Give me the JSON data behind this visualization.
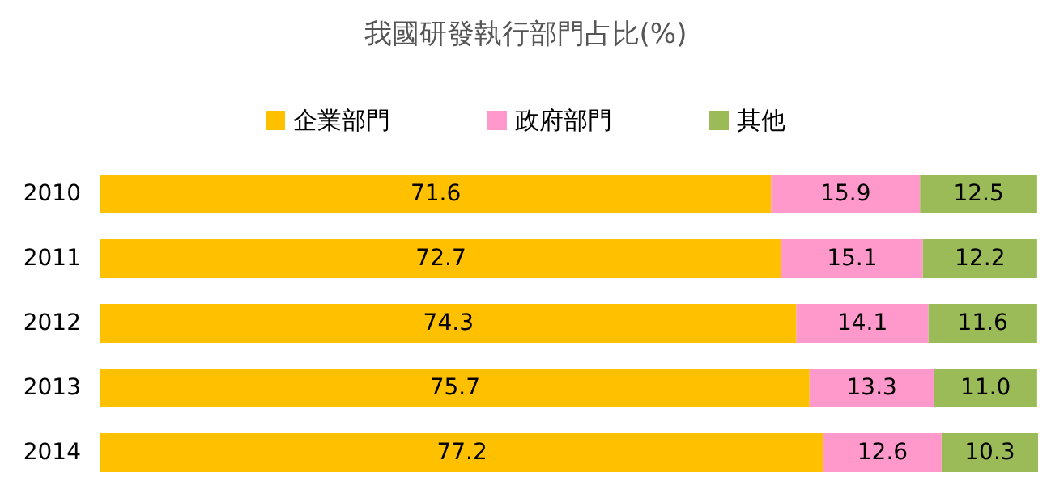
{
  "chart_data": {
    "type": "bar",
    "title": "我國研發執行部門占比(%)",
    "orientation": "horizontal",
    "stacked": true,
    "categories": [
      "2010",
      "2011",
      "2012",
      "2013",
      "2014"
    ],
    "series": [
      {
        "name": "企業部門",
        "color": "#ffc000",
        "values": [
          71.6,
          72.7,
          74.3,
          75.7,
          77.2
        ],
        "value_labels": [
          "71.6",
          "72.7",
          "74.3",
          "75.7",
          "77.2"
        ]
      },
      {
        "name": "政府部門",
        "color": "#ff99cc",
        "values": [
          15.9,
          15.1,
          14.1,
          13.3,
          12.6
        ],
        "value_labels": [
          "15.9",
          "15.1",
          "14.1",
          "13.3",
          "12.6"
        ]
      },
      {
        "name": "其他",
        "color": "#9bbb59",
        "values": [
          12.5,
          12.2,
          11.6,
          11.0,
          10.3
        ],
        "value_labels": [
          "12.5",
          "12.2",
          "11.6",
          "11.0",
          "10.3"
        ]
      }
    ],
    "legend": "top",
    "grid": false,
    "tick_labels": "y"
  }
}
